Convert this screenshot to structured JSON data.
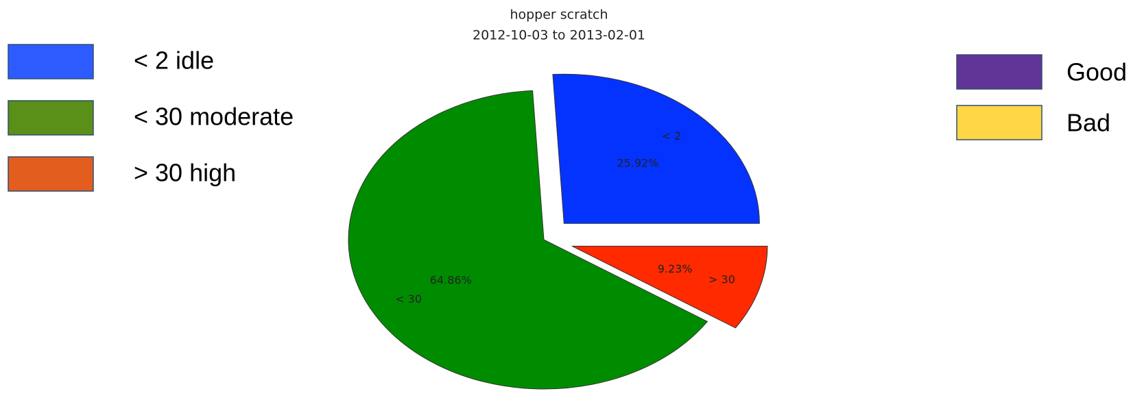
{
  "chart_data": {
    "type": "pie",
    "title": "hopper scratch",
    "subtitle": "2012-10-03 to 2013-02-01",
    "categories": [
      "< 2",
      "< 30",
      "> 30"
    ],
    "values": [
      25.92,
      64.86,
      9.23
    ],
    "value_labels": [
      "25.92%",
      "64.86%",
      "9.23%"
    ],
    "colors": [
      "#0433ff",
      "#008c00",
      "#ff2a00"
    ],
    "explode": [
      0.15,
      0,
      0.15
    ],
    "legend": [
      {
        "label": "< 2 idle",
        "color": "#2e5bff"
      },
      {
        "label": "< 30 moderate",
        "color": "#5a8f18"
      },
      {
        "label": "> 30 high",
        "color": "#e35d1f"
      }
    ],
    "legend2": [
      {
        "label": "Good",
        "color": "#603597"
      },
      {
        "label": "Bad",
        "color": "#fed646"
      }
    ]
  }
}
